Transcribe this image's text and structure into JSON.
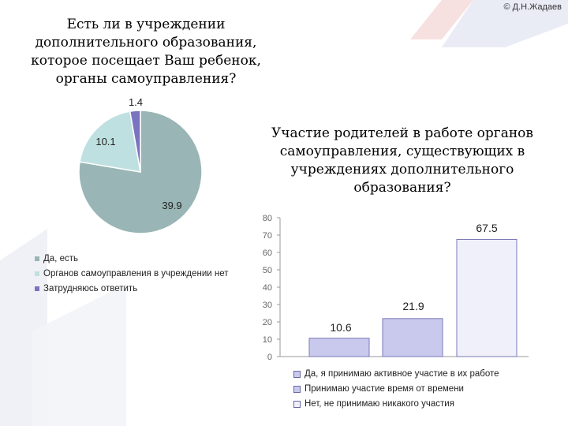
{
  "copyright": "© Д.Н.Жадаев",
  "colors": {
    "pie_yes": "#9ab5b5",
    "pie_no": "#bfe0e0",
    "pie_unsure": "#7a74c0",
    "bar_active": "#c9c9ee",
    "bar_sometimes": "#c9c9ee",
    "bar_never": "#f0f0fb",
    "bar_stroke": "#7a7ab8",
    "decor_red": "#e0a0a0",
    "decor_blue": "#c8cfe8"
  },
  "chart_data": [
    {
      "type": "pie",
      "title": "Есть ли в учреждении дополнительного образования, которое посещает Ваш ребенок, органы самоуправления?",
      "categories": [
        "Да, есть",
        "Органов самоуправления в учреждении нет",
        "Затрудняюсь ответить"
      ],
      "values": [
        39.9,
        10.1,
        1.4
      ],
      "data_labels": [
        "39.9",
        "10.1",
        "1.4"
      ],
      "legend": "left-below"
    },
    {
      "type": "bar",
      "title": "Участие родителей в работе органов самоуправления, существующих в учреждениях дополнительного образования?",
      "categories": [
        "Да, я принимаю активное участие в их работе",
        "Принимаю участие время от времени",
        "Нет, не принимаю никакого участия"
      ],
      "values": [
        10.6,
        21.9,
        67.5
      ],
      "data_labels": [
        "10.6",
        "21.9",
        "67.5"
      ],
      "ylim": [
        0,
        80
      ],
      "yticks": [
        "0",
        "10",
        "20",
        "30",
        "40",
        "50",
        "60",
        "70",
        "80"
      ],
      "grid": false,
      "legend": "bottom"
    }
  ]
}
